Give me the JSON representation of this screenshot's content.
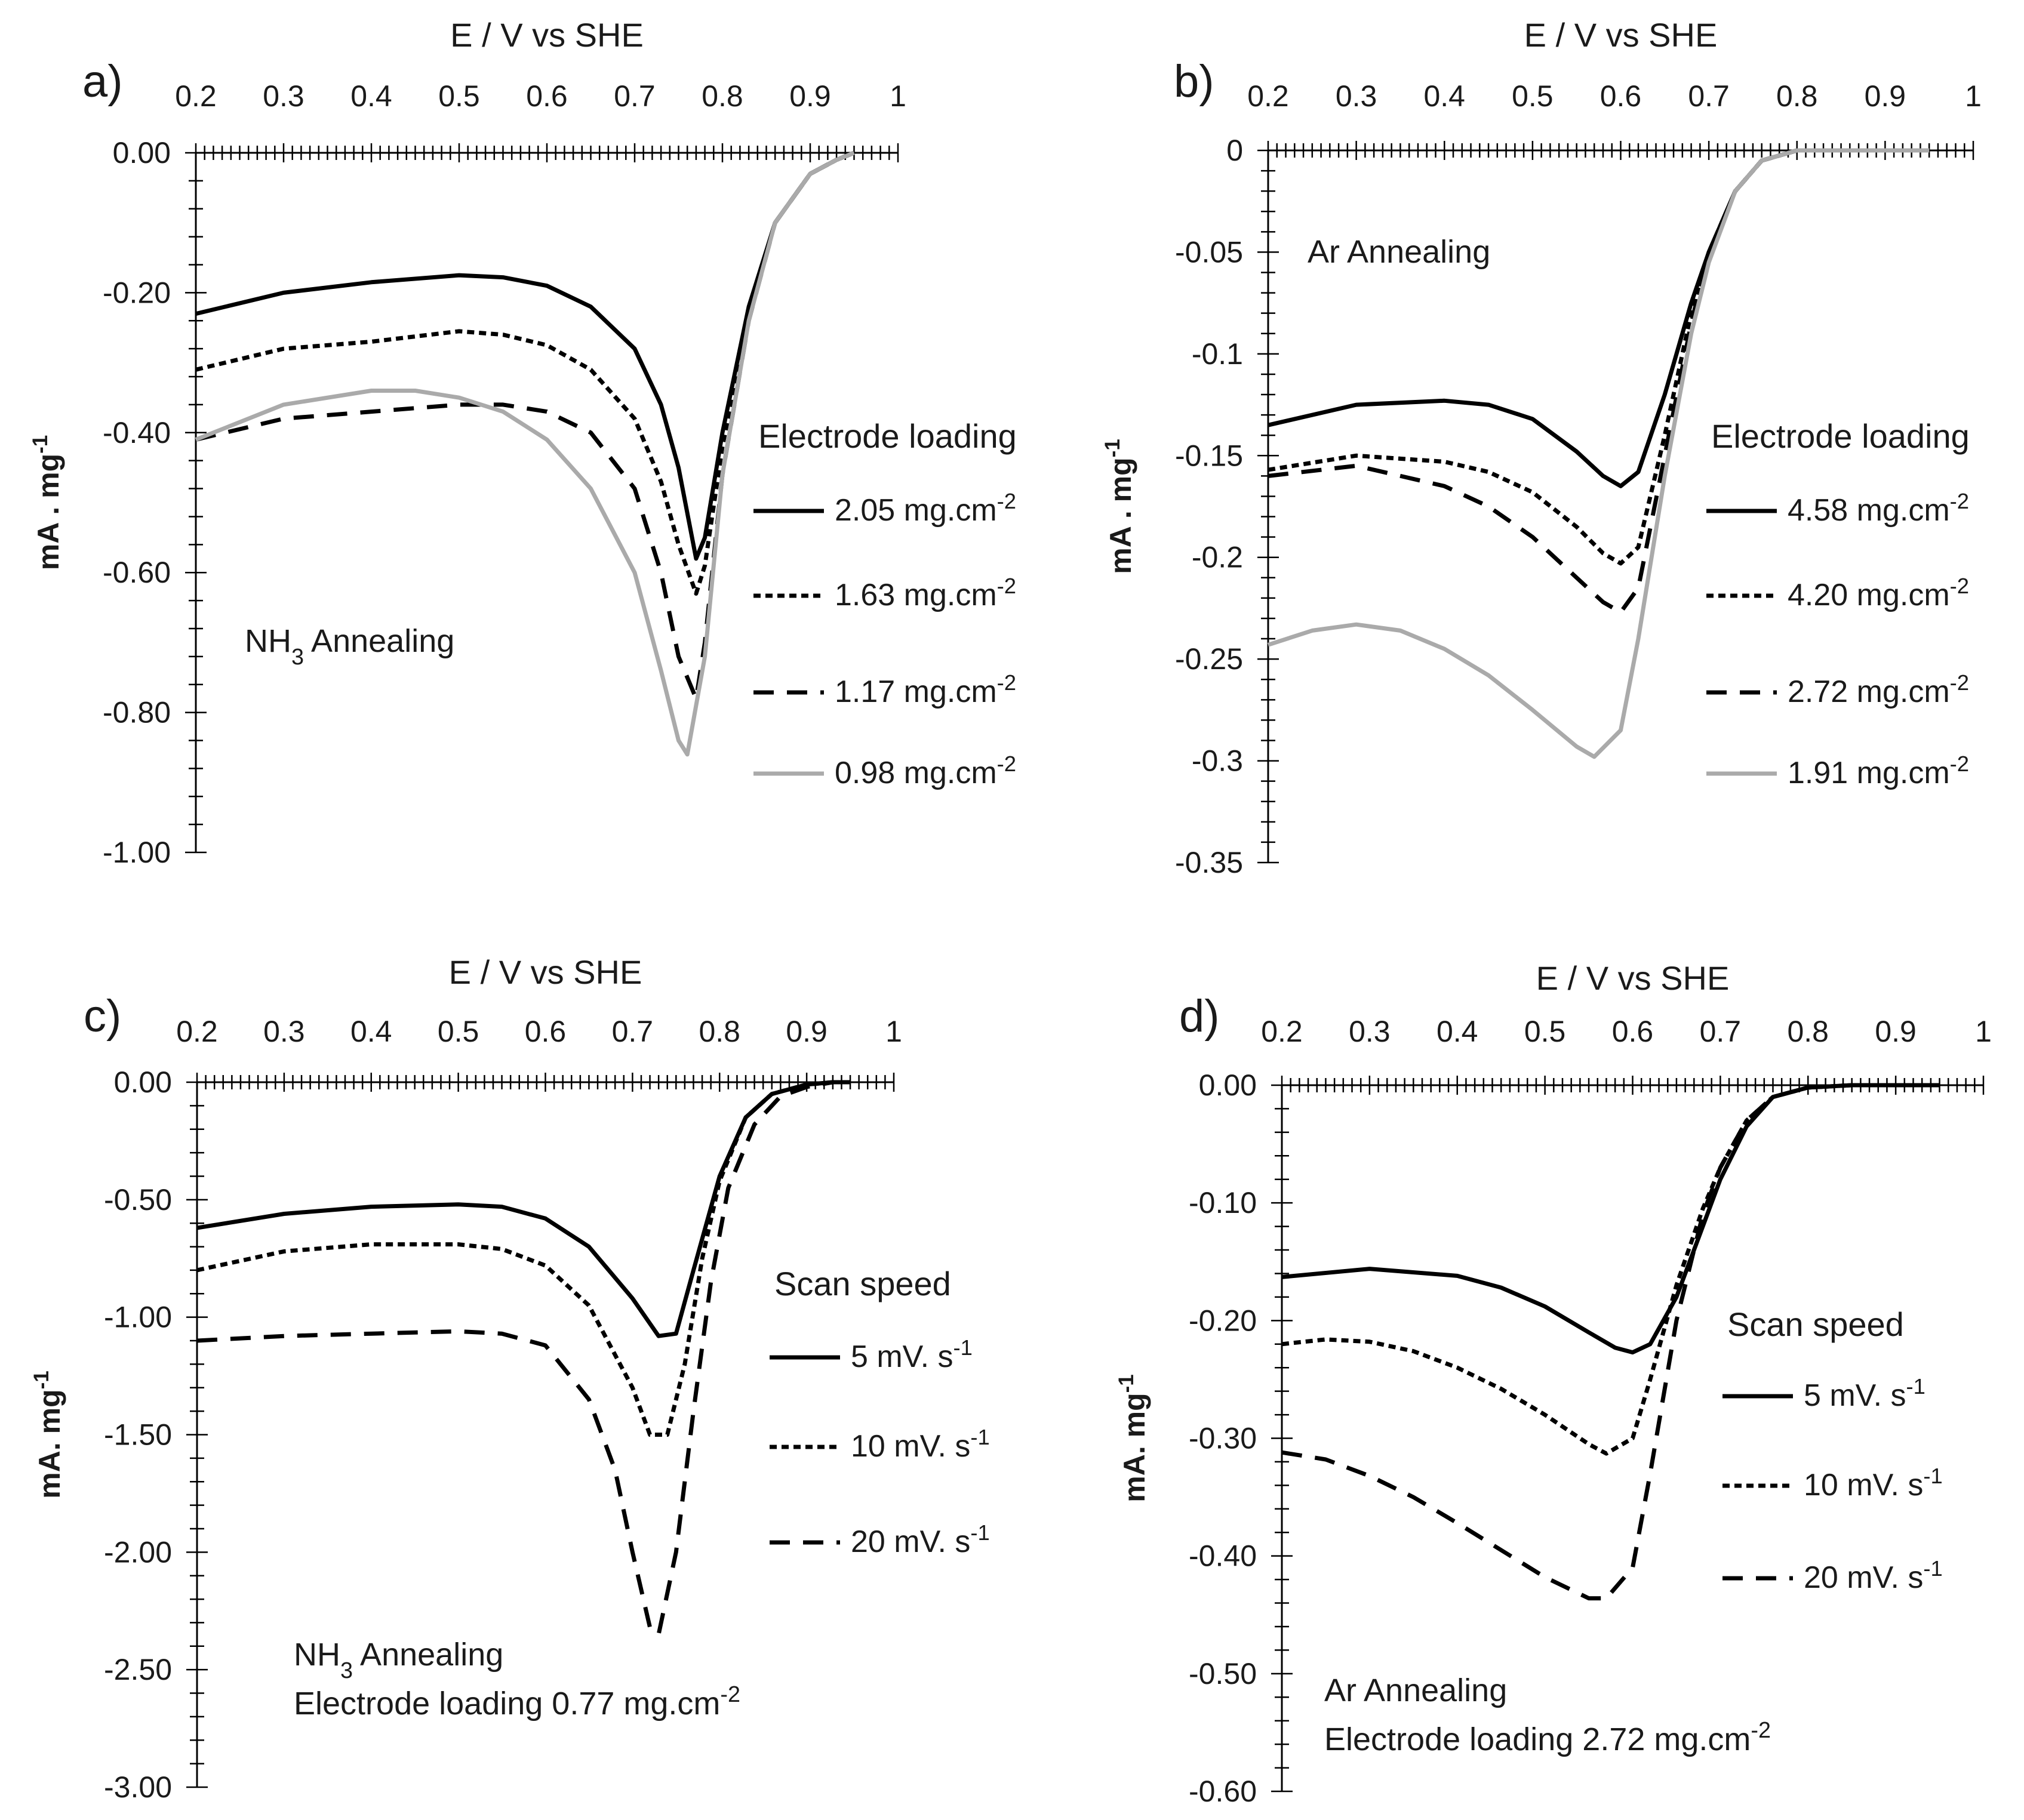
{
  "chart_data": [
    {
      "type": "line",
      "panel": "a)",
      "xlabel": "E / V vs SHE",
      "ylabel": "mA . mg-1",
      "xlim": [
        0.2,
        1.0
      ],
      "ylim": [
        -1.0,
        0.0
      ],
      "x_ticks": [
        "0.2",
        "0.3",
        "0.4",
        "0.5",
        "0.6",
        "0.7",
        "0.8",
        "0.9",
        "1"
      ],
      "y_ticks": [
        "0.00",
        "-0.20",
        "-0.40",
        "-0.60",
        "-0.80",
        "-1.00"
      ],
      "y_tick_values": [
        0.0,
        -0.2,
        -0.4,
        -0.6,
        -0.8,
        -1.0
      ],
      "annotation": [
        "NH3 Annealing"
      ],
      "legend_title": "Electrode loading",
      "series": [
        {
          "name": "2.05 mg.cm-2",
          "style": "solid",
          "color": "#000000",
          "x": [
            0.2,
            0.3,
            0.4,
            0.5,
            0.55,
            0.6,
            0.65,
            0.7,
            0.73,
            0.75,
            0.77,
            0.78,
            0.8,
            0.83,
            0.86,
            0.9,
            0.93,
            0.95
          ],
          "y": [
            -0.23,
            -0.2,
            -0.185,
            -0.175,
            -0.178,
            -0.19,
            -0.22,
            -0.28,
            -0.36,
            -0.45,
            -0.58,
            -0.55,
            -0.4,
            -0.22,
            -0.1,
            -0.03,
            -0.01,
            0.0
          ]
        },
        {
          "name": "1.63 mg.cm-2",
          "style": "dotted",
          "color": "#000000",
          "x": [
            0.2,
            0.3,
            0.4,
            0.5,
            0.55,
            0.6,
            0.65,
            0.7,
            0.73,
            0.75,
            0.77,
            0.78,
            0.8,
            0.83,
            0.86,
            0.9,
            0.93,
            0.95
          ],
          "y": [
            -0.31,
            -0.28,
            -0.27,
            -0.255,
            -0.26,
            -0.275,
            -0.31,
            -0.38,
            -0.47,
            -0.56,
            -0.63,
            -0.59,
            -0.42,
            -0.23,
            -0.1,
            -0.03,
            -0.01,
            0.0
          ]
        },
        {
          "name": "1.17 mg.cm-2",
          "style": "dashed",
          "color": "#000000",
          "x": [
            0.2,
            0.3,
            0.4,
            0.5,
            0.55,
            0.6,
            0.65,
            0.7,
            0.73,
            0.75,
            0.77,
            0.78,
            0.8,
            0.83,
            0.86,
            0.9,
            0.93,
            0.95
          ],
          "y": [
            -0.41,
            -0.38,
            -0.37,
            -0.36,
            -0.36,
            -0.37,
            -0.4,
            -0.48,
            -0.6,
            -0.72,
            -0.78,
            -0.7,
            -0.46,
            -0.24,
            -0.1,
            -0.03,
            -0.01,
            0.0
          ]
        },
        {
          "name": "0.98 mg.cm-2",
          "style": "solid",
          "color": "#aaaaaa",
          "x": [
            0.2,
            0.3,
            0.4,
            0.45,
            0.5,
            0.55,
            0.6,
            0.65,
            0.7,
            0.73,
            0.75,
            0.76,
            0.78,
            0.8,
            0.83,
            0.86,
            0.9,
            0.93,
            0.95
          ],
          "y": [
            -0.41,
            -0.36,
            -0.34,
            -0.34,
            -0.35,
            -0.37,
            -0.41,
            -0.48,
            -0.6,
            -0.74,
            -0.84,
            -0.86,
            -0.72,
            -0.46,
            -0.24,
            -0.1,
            -0.03,
            -0.01,
            0.0
          ]
        }
      ]
    },
    {
      "type": "line",
      "panel": "b)",
      "xlabel": "E / V vs SHE",
      "ylabel": "mA . mg-1",
      "xlim": [
        0.2,
        1.0
      ],
      "ylim": [
        -0.35,
        0.0
      ],
      "x_ticks": [
        "0.2",
        "0.3",
        "0.4",
        "0.5",
        "0.6",
        "0.7",
        "0.8",
        "0.9",
        "1"
      ],
      "y_ticks": [
        "0",
        "-0.05",
        "-0.1",
        "-0.15",
        "-0.2",
        "-0.25",
        "-0.3",
        "-0.35"
      ],
      "y_tick_values": [
        0.0,
        -0.05,
        -0.1,
        -0.15,
        -0.2,
        -0.25,
        -0.3,
        -0.35
      ],
      "annotation": [
        "Ar Annealing"
      ],
      "legend_title": "Electrode loading",
      "series": [
        {
          "name": "4.58 mg.cm-2",
          "style": "solid",
          "color": "#000000",
          "x": [
            0.2,
            0.3,
            0.4,
            0.45,
            0.5,
            0.55,
            0.58,
            0.6,
            0.62,
            0.65,
            0.68,
            0.7,
            0.73,
            0.76,
            0.8,
            0.85,
            0.9,
            0.95
          ],
          "y": [
            -0.135,
            -0.125,
            -0.123,
            -0.125,
            -0.132,
            -0.148,
            -0.16,
            -0.165,
            -0.158,
            -0.12,
            -0.075,
            -0.05,
            -0.02,
            -0.005,
            0.0,
            0.0,
            0.0,
            0.0
          ]
        },
        {
          "name": "4.20 mg.cm-2",
          "style": "dotted",
          "color": "#000000",
          "x": [
            0.2,
            0.3,
            0.4,
            0.45,
            0.5,
            0.55,
            0.58,
            0.6,
            0.62,
            0.65,
            0.68,
            0.7,
            0.73,
            0.76,
            0.8,
            0.85,
            0.9,
            0.95
          ],
          "y": [
            -0.157,
            -0.15,
            -0.153,
            -0.158,
            -0.168,
            -0.185,
            -0.198,
            -0.203,
            -0.195,
            -0.14,
            -0.08,
            -0.05,
            -0.02,
            -0.005,
            0.0,
            0.0,
            0.0,
            0.0
          ]
        },
        {
          "name": "2.72 mg.cm-2",
          "style": "dashed",
          "color": "#000000",
          "x": [
            0.2,
            0.3,
            0.4,
            0.45,
            0.5,
            0.55,
            0.58,
            0.6,
            0.62,
            0.65,
            0.68,
            0.7,
            0.73,
            0.76,
            0.8,
            0.85,
            0.9,
            0.95
          ],
          "y": [
            -0.16,
            -0.155,
            -0.165,
            -0.175,
            -0.19,
            -0.21,
            -0.222,
            -0.227,
            -0.215,
            -0.15,
            -0.085,
            -0.05,
            -0.02,
            -0.005,
            0.0,
            0.0,
            0.0,
            0.0
          ]
        },
        {
          "name": "1.91 mg.cm-2",
          "style": "solid",
          "color": "#aaaaaa",
          "x": [
            0.2,
            0.25,
            0.3,
            0.35,
            0.4,
            0.45,
            0.5,
            0.55,
            0.57,
            0.6,
            0.62,
            0.65,
            0.68,
            0.7,
            0.73,
            0.76,
            0.8,
            0.85,
            0.9,
            0.95
          ],
          "y": [
            -0.243,
            -0.236,
            -0.233,
            -0.236,
            -0.245,
            -0.258,
            -0.275,
            -0.293,
            -0.298,
            -0.285,
            -0.24,
            -0.16,
            -0.09,
            -0.055,
            -0.02,
            -0.005,
            0.0,
            0.0,
            0.0,
            0.0
          ]
        }
      ]
    },
    {
      "type": "line",
      "panel": "c)",
      "xlabel": "E / V vs SHE",
      "ylabel": "mA. mg-1",
      "xlim": [
        0.2,
        1.0
      ],
      "ylim": [
        -3.0,
        0.0
      ],
      "x_ticks": [
        "0.2",
        "0.3",
        "0.4",
        "0.5",
        "0.6",
        "0.7",
        "0.8",
        "0.9",
        "1"
      ],
      "y_ticks": [
        "0.00",
        "-0.50",
        "-1.00",
        "-1.50",
        "-2.00",
        "-2.50",
        "-3.00"
      ],
      "y_tick_values": [
        0.0,
        -0.5,
        -1.0,
        -1.5,
        -2.0,
        -2.5,
        -3.0
      ],
      "annotation": [
        "NH3 Annealing",
        "Electrode loading 0.77 mg.cm-2"
      ],
      "legend_title": "Scan speed",
      "series": [
        {
          "name": "5 mV. s-1",
          "style": "solid",
          "color": "#000000",
          "x": [
            0.2,
            0.3,
            0.4,
            0.5,
            0.55,
            0.6,
            0.65,
            0.7,
            0.73,
            0.75,
            0.77,
            0.8,
            0.83,
            0.86,
            0.9,
            0.93,
            0.95
          ],
          "y": [
            -0.62,
            -0.56,
            -0.53,
            -0.52,
            -0.53,
            -0.58,
            -0.7,
            -0.92,
            -1.08,
            -1.07,
            -0.8,
            -0.4,
            -0.15,
            -0.05,
            -0.01,
            0.0,
            0.0
          ]
        },
        {
          "name": "10 mV. s-1",
          "style": "dotted",
          "color": "#000000",
          "x": [
            0.2,
            0.3,
            0.4,
            0.5,
            0.55,
            0.6,
            0.65,
            0.7,
            0.72,
            0.74,
            0.76,
            0.78,
            0.8,
            0.83,
            0.86,
            0.9,
            0.93,
            0.95
          ],
          "y": [
            -0.8,
            -0.72,
            -0.69,
            -0.69,
            -0.71,
            -0.78,
            -0.95,
            -1.3,
            -1.5,
            -1.5,
            -1.2,
            -0.75,
            -0.42,
            -0.15,
            -0.05,
            -0.01,
            0.0,
            0.0
          ]
        },
        {
          "name": "20 mV. s-1",
          "style": "dashed",
          "color": "#000000",
          "x": [
            0.2,
            0.3,
            0.4,
            0.5,
            0.55,
            0.6,
            0.65,
            0.68,
            0.7,
            0.72,
            0.73,
            0.75,
            0.77,
            0.79,
            0.81,
            0.84,
            0.87,
            0.9,
            0.93,
            0.95
          ],
          "y": [
            -1.1,
            -1.08,
            -1.07,
            -1.06,
            -1.07,
            -1.12,
            -1.35,
            -1.65,
            -2.0,
            -2.32,
            -2.35,
            -2.0,
            -1.4,
            -0.85,
            -0.45,
            -0.18,
            -0.06,
            -0.02,
            0.0,
            0.0
          ]
        }
      ]
    },
    {
      "type": "line",
      "panel": "d)",
      "xlabel": "E / V vs SHE",
      "ylabel": "mA. mg-1",
      "xlim": [
        0.2,
        1.0
      ],
      "ylim": [
        -0.6,
        0.0
      ],
      "x_ticks": [
        "0.2",
        "0.3",
        "0.4",
        "0.5",
        "0.6",
        "0.7",
        "0.8",
        "0.9",
        "1"
      ],
      "y_ticks": [
        "0.00",
        "-0.10",
        "-0.20",
        "-0.30",
        "-0.40",
        "-0.50",
        "-0.60"
      ],
      "y_tick_values": [
        0.0,
        -0.1,
        -0.2,
        -0.3,
        -0.4,
        -0.5,
        -0.6
      ],
      "annotation": [
        "Ar Annealing",
        "Electrode loading 2.72 mg.cm-2"
      ],
      "legend_title": "Scan speed",
      "series": [
        {
          "name": "5 mV. s-1",
          "style": "solid",
          "color": "#000000",
          "x": [
            0.2,
            0.3,
            0.4,
            0.45,
            0.5,
            0.55,
            0.58,
            0.6,
            0.62,
            0.65,
            0.68,
            0.7,
            0.73,
            0.76,
            0.8,
            0.85,
            0.9,
            0.95
          ],
          "y": [
            -0.163,
            -0.156,
            -0.162,
            -0.172,
            -0.188,
            -0.21,
            -0.223,
            -0.227,
            -0.22,
            -0.18,
            -0.12,
            -0.08,
            -0.035,
            -0.01,
            -0.002,
            0.0,
            0.0,
            0.0
          ]
        },
        {
          "name": "10 mV. s-1",
          "style": "dotted",
          "color": "#000000",
          "x": [
            0.2,
            0.25,
            0.3,
            0.35,
            0.4,
            0.45,
            0.5,
            0.55,
            0.57,
            0.6,
            0.62,
            0.65,
            0.68,
            0.7,
            0.73,
            0.76,
            0.8,
            0.85,
            0.9,
            0.95
          ],
          "y": [
            -0.22,
            -0.216,
            -0.218,
            -0.226,
            -0.24,
            -0.258,
            -0.28,
            -0.305,
            -0.313,
            -0.3,
            -0.25,
            -0.17,
            -0.105,
            -0.07,
            -0.03,
            -0.01,
            -0.002,
            0.0,
            0.0,
            0.0
          ]
        },
        {
          "name": "20 mV. s-1",
          "style": "dashed",
          "color": "#000000",
          "x": [
            0.2,
            0.25,
            0.3,
            0.35,
            0.4,
            0.45,
            0.5,
            0.55,
            0.57,
            0.6,
            0.62,
            0.65,
            0.68,
            0.7,
            0.73,
            0.76,
            0.8,
            0.85,
            0.9,
            0.95
          ],
          "y": [
            -0.312,
            -0.318,
            -0.332,
            -0.35,
            -0.372,
            -0.395,
            -0.418,
            -0.436,
            -0.436,
            -0.41,
            -0.33,
            -0.2,
            -0.11,
            -0.07,
            -0.03,
            -0.01,
            -0.002,
            0.0,
            0.0,
            0.0
          ]
        }
      ]
    }
  ]
}
